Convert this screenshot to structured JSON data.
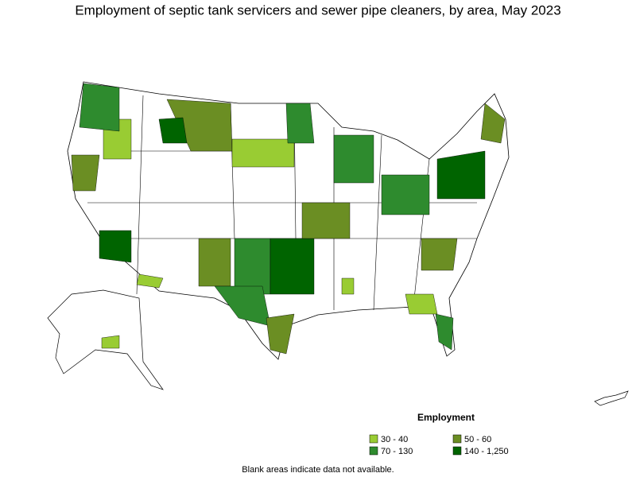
{
  "title": "Employment of septic tank servicers and sewer pipe cleaners, by area, May 2023",
  "legend": {
    "title": "Employment",
    "items": [
      {
        "label": "30 - 40",
        "color": "#99cc33"
      },
      {
        "label": "50 - 60",
        "color": "#6b8e23"
      },
      {
        "label": "70 - 130",
        "color": "#2e8b2e"
      },
      {
        "label": "140 - 1,250",
        "color": "#006400"
      }
    ]
  },
  "note": "Blank areas indicate data not available."
}
